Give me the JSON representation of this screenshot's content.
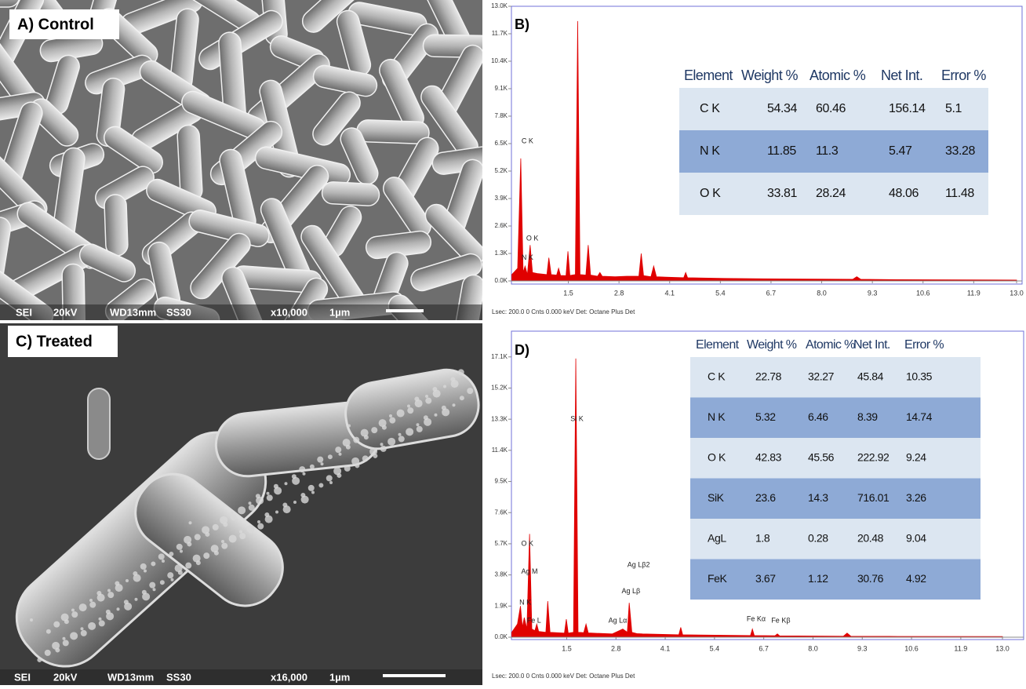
{
  "panels": [
    {
      "label": "A) Control",
      "info": [
        "SEI",
        "20kV",
        "WD13mm",
        "SS30",
        "x10,000",
        "1µm"
      ]
    },
    {
      "label": "C) Treated",
      "info": [
        "SEI",
        "20kV",
        "WD13mm",
        "SS30",
        "x16,000",
        "1µm"
      ]
    }
  ],
  "chart_data": [
    {
      "type": "area",
      "panel_label": "B)",
      "color": "#e00000",
      "x": [
        0.05,
        0.2,
        0.28,
        0.34,
        0.39,
        0.45,
        0.52,
        0.58,
        0.7,
        0.95,
        1.0,
        1.06,
        1.2,
        1.25,
        1.3,
        1.44,
        1.49,
        1.54,
        1.68,
        1.74,
        1.8,
        1.95,
        2.01,
        2.07,
        2.25,
        2.31,
        2.37,
        2.7,
        3.0,
        3.31,
        3.37,
        3.43,
        3.62,
        3.69,
        3.76,
        4.0,
        4.46,
        4.51,
        4.56,
        5.5,
        6.5,
        8.8,
        8.9,
        9.0,
        10,
        13
      ],
      "values": [
        300,
        600,
        5800,
        400,
        700,
        300,
        1700,
        400,
        350,
        300,
        1100,
        300,
        280,
        600,
        260,
        250,
        1400,
        260,
        300,
        12300,
        300,
        280,
        1700,
        280,
        220,
        400,
        220,
        200,
        220,
        220,
        1300,
        250,
        200,
        700,
        200,
        180,
        150,
        400,
        150,
        120,
        100,
        80,
        200,
        80,
        60,
        40
      ],
      "xlim": [
        0,
        13
      ],
      "xticks": [
        1.5,
        2.8,
        4.1,
        5.4,
        6.7,
        {
          "value": 8,
          "label": "8.0"
        },
        9.3,
        10.6,
        11.9,
        {
          "value": 13,
          "label": "13.0"
        }
      ],
      "ylim": [
        0,
        13000
      ],
      "yticks": [
        {
          "value": 0,
          "label": "0.0K"
        },
        {
          "value": 1300,
          "label": "1.3K"
        },
        {
          "value": 2600,
          "label": "2.6K"
        },
        {
          "value": 3900,
          "label": "3.9K"
        },
        {
          "value": 5200,
          "label": "5.2K"
        },
        {
          "value": 6500,
          "label": "6.5K"
        },
        {
          "value": 7800,
          "label": "7.8K"
        },
        {
          "value": 9100,
          "label": "9.1K"
        },
        {
          "value": 10400,
          "label": "10.4K"
        },
        {
          "value": 11700,
          "label": "11.7K"
        },
        {
          "value": 13000,
          "label": "13.0K"
        }
      ],
      "annotations": [
        {
          "text": "C K",
          "x": 0.3,
          "y": 6600
        },
        {
          "text": "O K",
          "x": 0.42,
          "y": 2000
        },
        {
          "text": "N K",
          "x": 0.3,
          "y": 1100
        }
      ],
      "footer": "Lsec: 200.0 0 Cnts 0.000 keV Det: Octane Plus Det",
      "table": {
        "header": [
          "Element",
          "Weight %",
          "Atomic %",
          "Net Int.",
          "Error %"
        ],
        "rows": [
          [
            "C K",
            54.34,
            60.46,
            156.14,
            5.1
          ],
          [
            "N K",
            11.85,
            11.3,
            5.47,
            33.28
          ],
          [
            "O K",
            33.81,
            28.24,
            48.06,
            11.48
          ]
        ]
      }
    },
    {
      "type": "area",
      "panel_label": "D)",
      "color": "#e00000",
      "x": [
        0.05,
        0.2,
        0.28,
        0.33,
        0.38,
        0.45,
        0.52,
        0.58,
        0.66,
        0.71,
        0.76,
        0.95,
        1.0,
        1.06,
        1.44,
        1.49,
        1.54,
        1.68,
        1.74,
        1.8,
        1.95,
        2.01,
        2.07,
        2.7,
        2.98,
        3.1,
        3.15,
        3.22,
        3.35,
        3.5,
        4.46,
        4.51,
        4.56,
        6.35,
        6.4,
        6.45,
        7.0,
        7.06,
        7.12,
        8.8,
        8.9,
        9.0,
        10,
        13
      ],
      "values": [
        300,
        800,
        1900,
        600,
        1200,
        500,
        6300,
        500,
        400,
        800,
        350,
        300,
        2200,
        300,
        250,
        1100,
        250,
        300,
        17000,
        300,
        280,
        800,
        260,
        200,
        500,
        300,
        2100,
        300,
        220,
        200,
        150,
        600,
        150,
        100,
        500,
        100,
        90,
        200,
        80,
        60,
        250,
        60,
        50,
        40
      ],
      "xlim": [
        0,
        13
      ],
      "xticks": [
        1.5,
        2.8,
        4.1,
        5.4,
        6.7,
        {
          "value": 8,
          "label": "8.0"
        },
        9.3,
        10.6,
        11.9,
        {
          "value": 13,
          "label": "13.0"
        }
      ],
      "ylim": [
        0,
        18000
      ],
      "yticks": [
        {
          "value": 0,
          "label": "0.0K"
        },
        {
          "value": 1900,
          "label": "1.9K"
        },
        {
          "value": 3800,
          "label": "3.8K"
        },
        {
          "value": 5700,
          "label": "5.7K"
        },
        {
          "value": 7600,
          "label": "7.6K"
        },
        {
          "value": 9500,
          "label": "9.5K"
        },
        {
          "value": 11400,
          "label": "11.4K"
        },
        {
          "value": 13300,
          "label": "13.3K"
        },
        {
          "value": 15200,
          "label": "15.2K"
        },
        {
          "value": 17100,
          "label": "17.1K"
        }
      ],
      "annotations": [
        {
          "text": "Si K",
          "x": 1.6,
          "y": 13300
        },
        {
          "text": "O K",
          "x": 0.3,
          "y": 5700
        },
        {
          "text": "Ag M",
          "x": 0.3,
          "y": 4000
        },
        {
          "text": "N K",
          "x": 0.25,
          "y": 2100
        },
        {
          "text": "Fe L",
          "x": 0.45,
          "y": 1000
        },
        {
          "text": "Ag Lβ2",
          "x": 3.1,
          "y": 4400
        },
        {
          "text": "Ag Lβ",
          "x": 2.95,
          "y": 2800
        },
        {
          "text": "Ag Lα",
          "x": 2.6,
          "y": 1000
        },
        {
          "text": "Fe Kα",
          "x": 6.25,
          "y": 1100
        },
        {
          "text": "Fe Kβ",
          "x": 6.9,
          "y": 1000
        }
      ],
      "footer": "Lsec: 200.0 0 Cnts 0.000 keV Det: Octane Plus Det",
      "table": {
        "header": [
          "Element",
          "Weight %",
          "Atomic %",
          "Net Int.",
          "Error %"
        ],
        "rows": [
          [
            "C K",
            22.78,
            32.27,
            45.84,
            10.35
          ],
          [
            "N K",
            5.32,
            6.46,
            8.39,
            14.74
          ],
          [
            "O K",
            42.83,
            45.56,
            222.92,
            9.24
          ],
          [
            "SiK",
            23.6,
            14.3,
            716.01,
            3.26
          ],
          [
            "AgL",
            1.8,
            0.28,
            20.48,
            9.04
          ],
          [
            "FeK",
            3.67,
            1.12,
            30.76,
            4.92
          ]
        ]
      }
    }
  ]
}
